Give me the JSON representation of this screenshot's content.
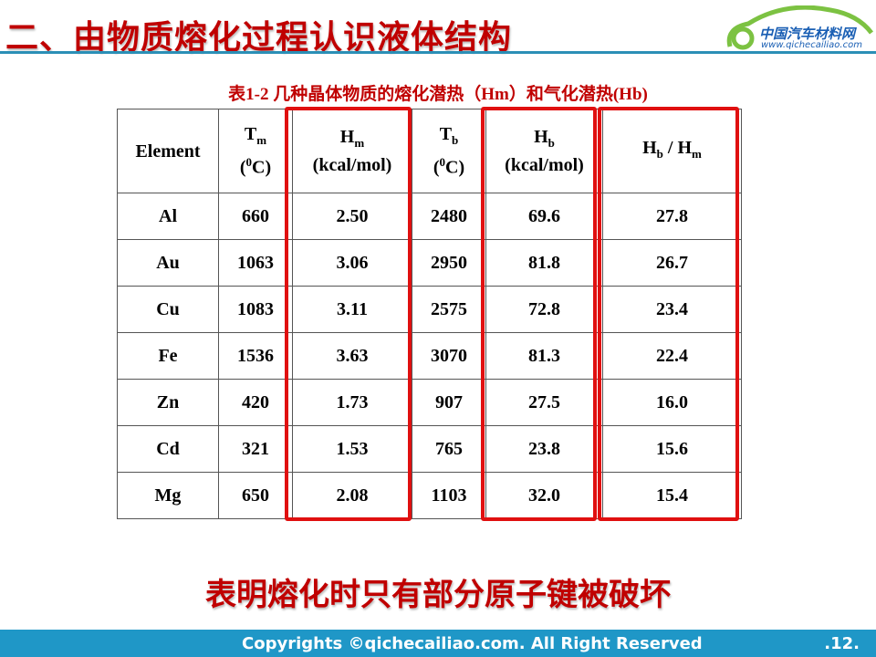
{
  "slide": {
    "title": "二、由物质熔化过程认识液体结构",
    "caption": "表1-2 几种晶体物质的熔化潜热（Hm）和气化潜热(Hb)",
    "conclusion": "表明熔化时只有部分原子键被破坏"
  },
  "logo": {
    "name": "中国汽车材料网",
    "url": "www.qichecailiao.com"
  },
  "table": {
    "headers": [
      {
        "main": "Element"
      },
      {
        "main": "T",
        "sub": "m",
        "unit_sup": "0",
        "unit": "C"
      },
      {
        "main": "H",
        "sub": "m",
        "line2": "(kcal/mol)"
      },
      {
        "main": "T",
        "sub": "b",
        "unit_sup": "0",
        "unit": "C"
      },
      {
        "main": "H",
        "sub": "b",
        "line2": "(kcal/mol)"
      },
      {
        "main": "H",
        "sub": "b",
        "sep": " / H",
        "sub2": "m"
      }
    ],
    "rows": [
      [
        "Al",
        "660",
        "2.50",
        "2480",
        "69.6",
        "27.8"
      ],
      [
        "Au",
        "1063",
        "3.06",
        "2950",
        "81.8",
        "26.7"
      ],
      [
        "Cu",
        "1083",
        "3.11",
        "2575",
        "72.8",
        "23.4"
      ],
      [
        "Fe",
        "1536",
        "3.63",
        "3070",
        "81.3",
        "22.4"
      ],
      [
        "Zn",
        "420",
        "1.73",
        "907",
        "27.5",
        "16.0"
      ],
      [
        "Cd",
        "321",
        "1.53",
        "765",
        "23.8",
        "15.6"
      ],
      [
        "Mg",
        "650",
        "2.08",
        "1103",
        "32.0",
        "15.4"
      ]
    ]
  },
  "footer": {
    "copyright": "Copyrights ©qichecailiao.com. All Right Reserved",
    "page": ".12."
  },
  "colors": {
    "title": "#c00000",
    "footer": "#1f97c7",
    "highlight": "#e01010"
  }
}
